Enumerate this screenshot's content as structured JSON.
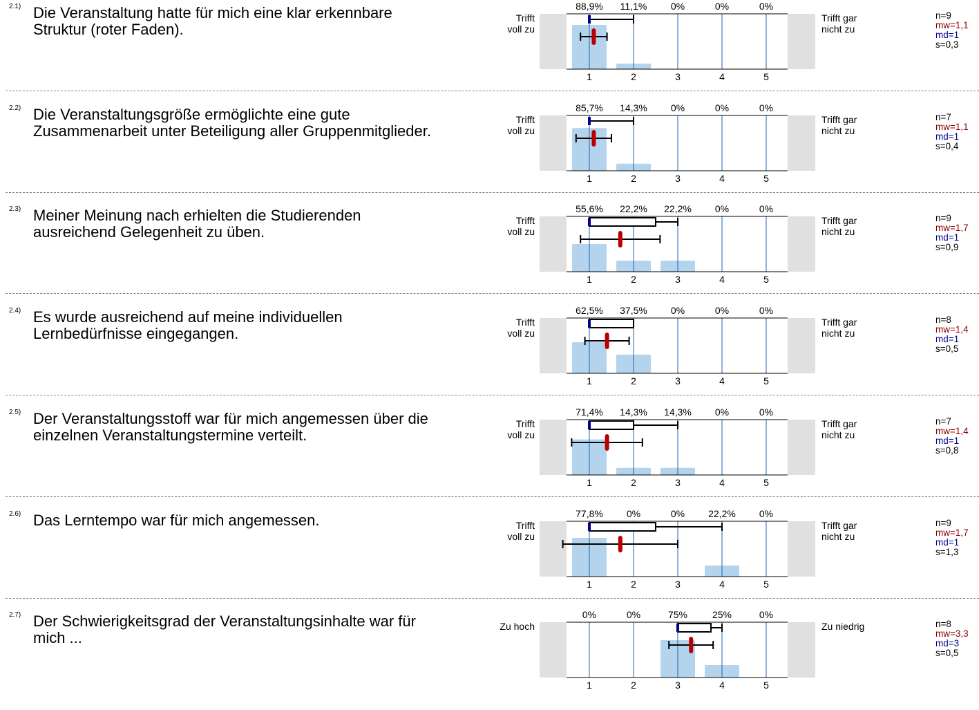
{
  "scale": {
    "ticks": [
      "1",
      "2",
      "3",
      "4",
      "5"
    ]
  },
  "colors": {
    "bar": "#b3d4ec",
    "grid": "#1e63b0",
    "mean": "#b80000",
    "median": "#00008b",
    "side": "#e0e0e0"
  },
  "items": [
    {
      "number": "2.1)",
      "text": "Die Veranstaltung hatte für mich eine klar erkennbare Struktur (roter Faden).",
      "left_label": "Trifft\nvoll zu",
      "right_label": "Trifft gar\nnicht zu",
      "percent_labels": [
        "88,9%",
        "11,1%",
        "0%",
        "0%",
        "0%"
      ],
      "chart_data": {
        "type": "bar",
        "categories": [
          1,
          2,
          3,
          4,
          5
        ],
        "values": [
          88.9,
          11.1,
          0,
          0,
          0
        ],
        "ylim": [
          0,
          100
        ],
        "box": {
          "median": 1,
          "q3": 1,
          "whisker_high": 2
        },
        "mean": 1.1,
        "sd": 0.3
      },
      "stats": {
        "n": "n=9",
        "mw": "mw=1,1",
        "md": "md=1",
        "s": "s=0,3"
      }
    },
    {
      "number": "2.2)",
      "text": "Die Veranstaltungsgröße ermöglichte eine gute Zusammenarbeit unter Beteiligung aller Gruppenmitglieder.",
      "left_label": "Trifft\nvoll zu",
      "right_label": "Trifft gar\nnicht zu",
      "percent_labels": [
        "85,7%",
        "14,3%",
        "0%",
        "0%",
        "0%"
      ],
      "chart_data": {
        "type": "bar",
        "categories": [
          1,
          2,
          3,
          4,
          5
        ],
        "values": [
          85.7,
          14.3,
          0,
          0,
          0
        ],
        "ylim": [
          0,
          100
        ],
        "box": {
          "median": 1,
          "q3": 1,
          "whisker_high": 2
        },
        "mean": 1.1,
        "sd": 0.4
      },
      "stats": {
        "n": "n=7",
        "mw": "mw=1,1",
        "md": "md=1",
        "s": "s=0,4"
      }
    },
    {
      "number": "2.3)",
      "text": "Meiner Meinung nach erhielten die Studierenden ausreichend Gelegenheit zu üben.",
      "left_label": "Trifft\nvoll zu",
      "right_label": "Trifft gar\nnicht zu",
      "percent_labels": [
        "55,6%",
        "22,2%",
        "22,2%",
        "0%",
        "0%"
      ],
      "chart_data": {
        "type": "bar",
        "categories": [
          1,
          2,
          3,
          4,
          5
        ],
        "values": [
          55.6,
          22.2,
          22.2,
          0,
          0
        ],
        "ylim": [
          0,
          100
        ],
        "box": {
          "median": 1,
          "q3": 2.5,
          "whisker_high": 3
        },
        "mean": 1.7,
        "sd": 0.9
      },
      "stats": {
        "n": "n=9",
        "mw": "mw=1,7",
        "md": "md=1",
        "s": "s=0,9"
      }
    },
    {
      "number": "2.4)",
      "text": "Es wurde ausreichend auf meine individuellen Lernbedürfnisse eingegangen.",
      "left_label": "Trifft\nvoll zu",
      "right_label": "Trifft gar\nnicht zu",
      "percent_labels": [
        "62,5%",
        "37,5%",
        "0%",
        "0%",
        "0%"
      ],
      "chart_data": {
        "type": "bar",
        "categories": [
          1,
          2,
          3,
          4,
          5
        ],
        "values": [
          62.5,
          37.5,
          0,
          0,
          0
        ],
        "ylim": [
          0,
          100
        ],
        "box": {
          "median": 1,
          "q3": 2,
          "whisker_high": 2
        },
        "mean": 1.4,
        "sd": 0.5
      },
      "stats": {
        "n": "n=8",
        "mw": "mw=1,4",
        "md": "md=1",
        "s": "s=0,5"
      }
    },
    {
      "number": "2.5)",
      "text": "Der Veranstaltungsstoff war für mich angemessen über die einzelnen Veranstaltungstermine verteilt.",
      "left_label": "Trifft\nvoll zu",
      "right_label": "Trifft gar\nnicht zu",
      "percent_labels": [
        "71,4%",
        "14,3%",
        "14,3%",
        "0%",
        "0%"
      ],
      "chart_data": {
        "type": "bar",
        "categories": [
          1,
          2,
          3,
          4,
          5
        ],
        "values": [
          71.4,
          14.3,
          14.3,
          0,
          0
        ],
        "ylim": [
          0,
          100
        ],
        "box": {
          "median": 1,
          "q3": 2,
          "whisker_high": 3
        },
        "mean": 1.4,
        "sd": 0.8
      },
      "stats": {
        "n": "n=7",
        "mw": "mw=1,4",
        "md": "md=1",
        "s": "s=0,8"
      }
    },
    {
      "number": "2.6)",
      "text": "Das Lerntempo war für mich angemessen.",
      "left_label": "Trifft\nvoll zu",
      "right_label": "Trifft gar\nnicht zu",
      "percent_labels": [
        "77,8%",
        "0%",
        "0%",
        "22,2%",
        "0%"
      ],
      "chart_data": {
        "type": "bar",
        "categories": [
          1,
          2,
          3,
          4,
          5
        ],
        "values": [
          77.8,
          0,
          0,
          22.2,
          0
        ],
        "ylim": [
          0,
          100
        ],
        "box": {
          "median": 1,
          "q3": 2.5,
          "whisker_high": 4
        },
        "mean": 1.7,
        "sd": 1.3
      },
      "stats": {
        "n": "n=9",
        "mw": "mw=1,7",
        "md": "md=1",
        "s": "s=1,3"
      }
    },
    {
      "number": "2.7)",
      "text": "Der Schwierigkeitsgrad der Veranstaltungsinhalte war für mich ...",
      "left_label": "Zu hoch",
      "right_label": "Zu niedrig",
      "percent_labels": [
        "0%",
        "0%",
        "75%",
        "25%",
        "0%"
      ],
      "chart_data": {
        "type": "bar",
        "categories": [
          1,
          2,
          3,
          4,
          5
        ],
        "values": [
          0,
          0,
          75,
          25,
          0
        ],
        "ylim": [
          0,
          100
        ],
        "box": {
          "median": 3,
          "q3": 3.75,
          "whisker_high": 4
        },
        "mean": 3.3,
        "sd": 0.5
      },
      "stats": {
        "n": "n=8",
        "mw": "mw=3,3",
        "md": "md=3",
        "s": "s=0,5"
      }
    }
  ]
}
